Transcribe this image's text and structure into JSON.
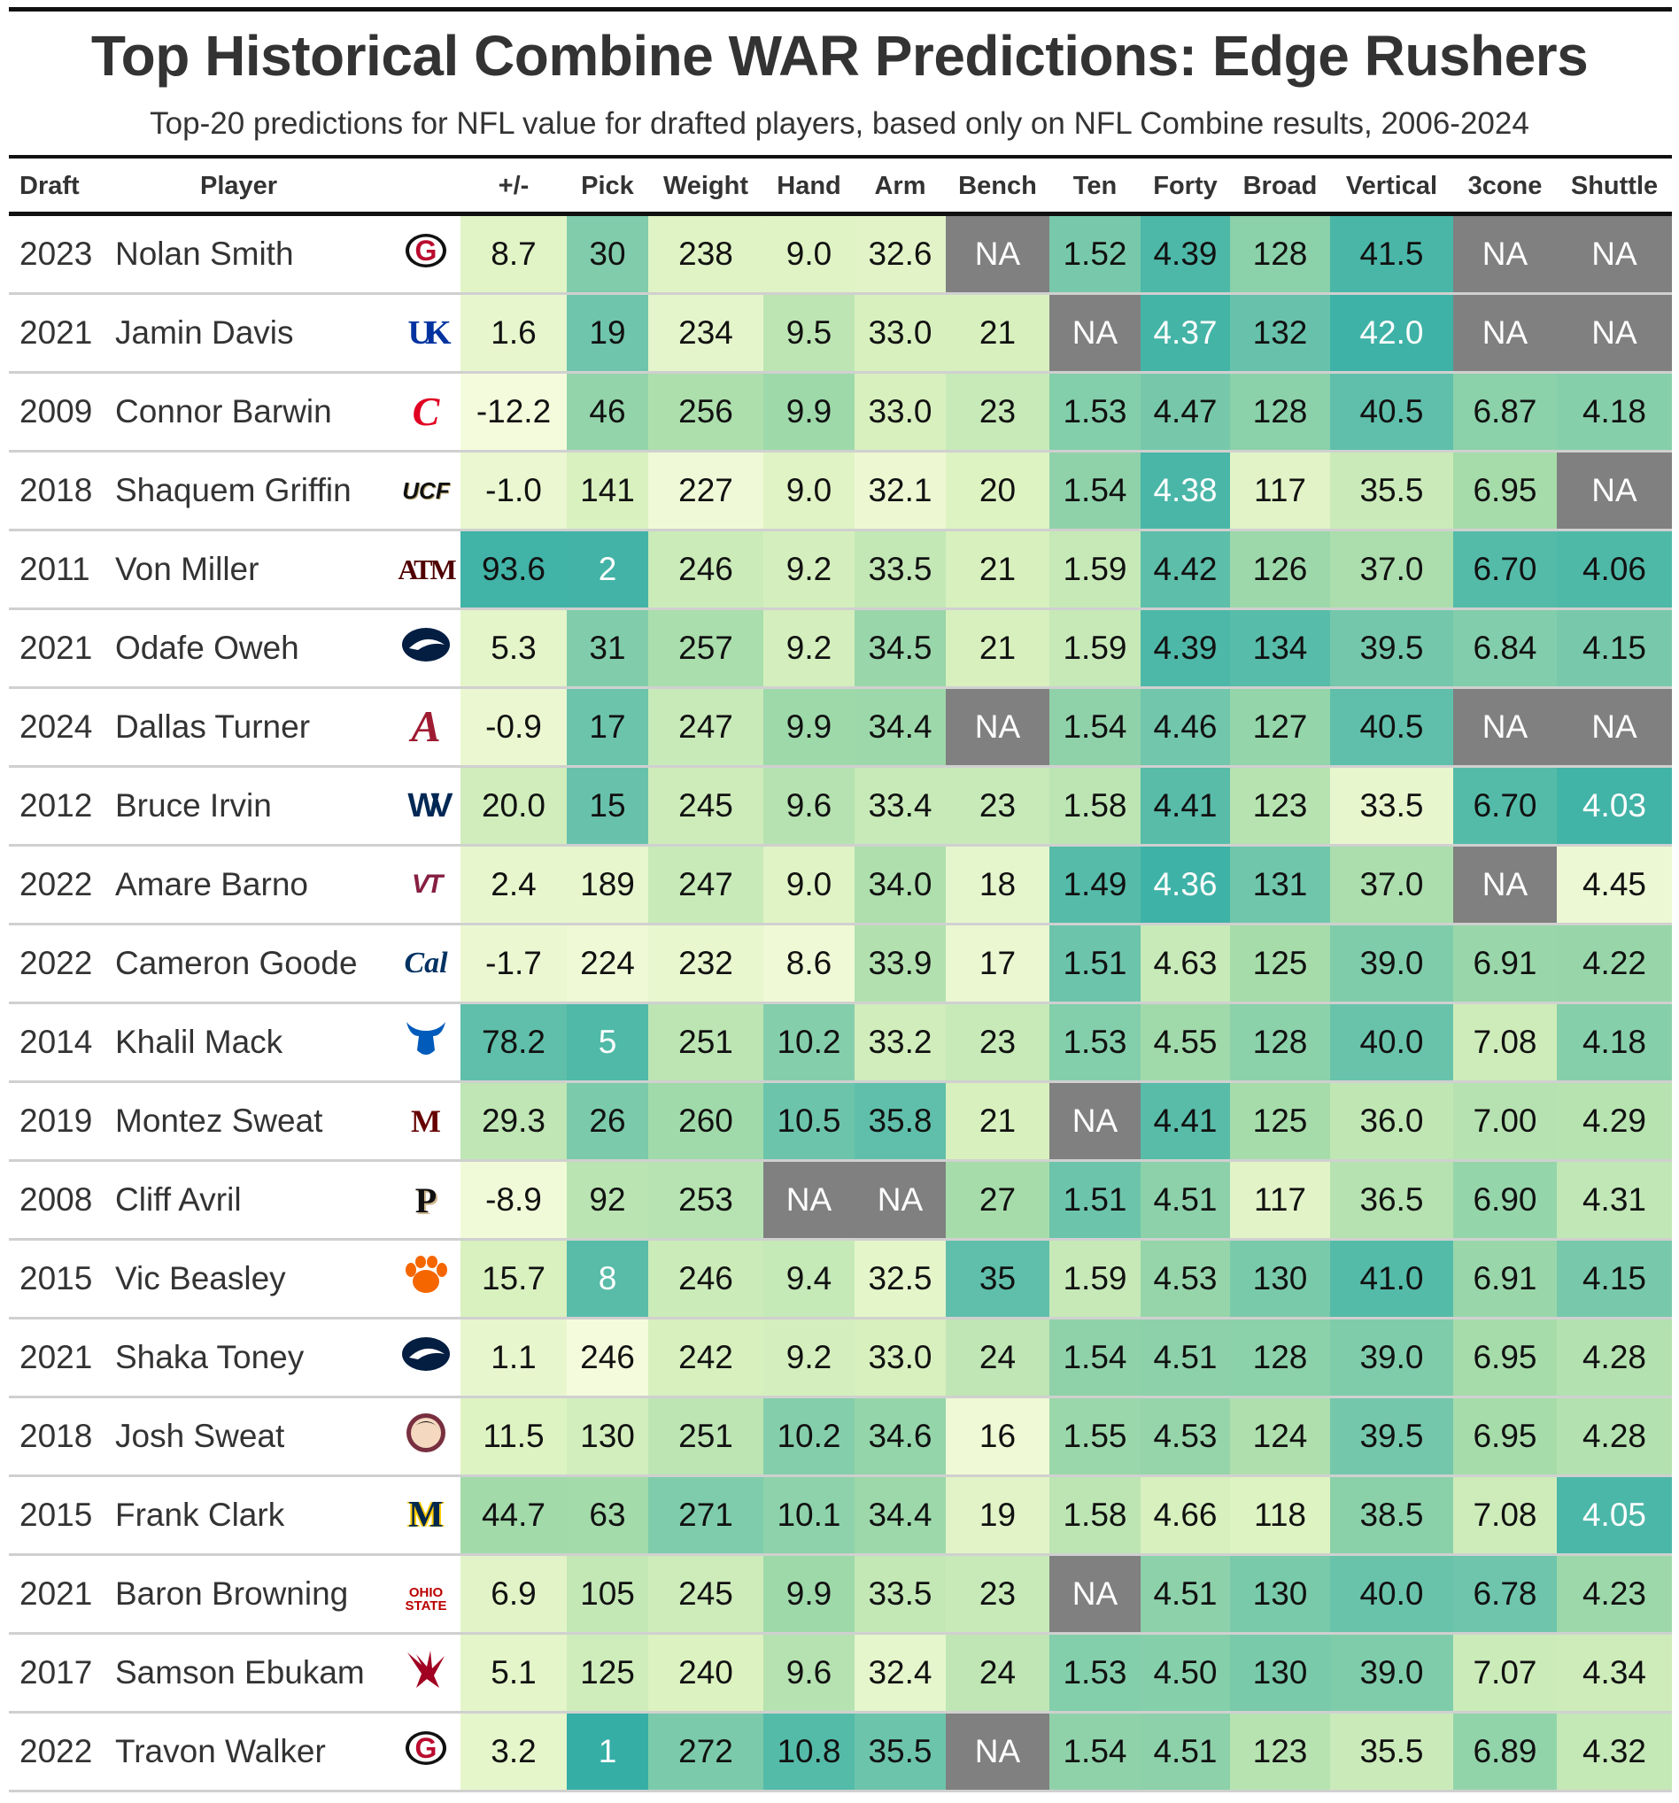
{
  "title": "Top Historical Combine WAR Predictions: Edge Rushers",
  "subtitle": "Top-20 predictions for NFL value for drafted players, based only on NFL Combine results, 2006-2024",
  "chart_data": {
    "type": "table",
    "columns": [
      "Draft",
      "Player",
      "",
      "+/-",
      "Pick",
      "Weight",
      "Hand",
      "Arm",
      "Bench",
      "Ten",
      "Forty",
      "Broad",
      "Vertical",
      "3cone",
      "Shuttle"
    ],
    "na_color": "#808080",
    "scale_colors": [
      "#f7fcdf",
      "#dcf2c0",
      "#a6dcaa",
      "#6cc4ab",
      "#35aea6"
    ],
    "stat_scales": {
      "pm": {
        "light": -15,
        "dark": 100
      },
      "pick": {
        "light": 260,
        "dark": 1,
        "power": 0.5,
        "white_at_or_better": 8
      },
      "weight": {
        "light": 222,
        "dark": 295
      },
      "hand": {
        "light": 8.4,
        "dark": 11.2
      },
      "arm": {
        "light": 31.6,
        "dark": 36.8
      },
      "bench": {
        "light": 14,
        "dark": 40
      },
      "ten": {
        "light": 1.66,
        "dark": 1.46
      },
      "forty": {
        "light": 4.78,
        "dark": 4.34,
        "white_at_or_better": 4.38
      },
      "broad": {
        "light": 112,
        "dark": 138
      },
      "vertical": {
        "light": 32,
        "dark": 42.5,
        "white_at_or_better": 42.0
      },
      "cone": {
        "light": 7.3,
        "dark": 6.6
      },
      "shuttle": {
        "light": 4.5,
        "dark": 4.0,
        "white_at_or_better": 4.05
      }
    },
    "rows": [
      {
        "draft": "2023",
        "player": "Nolan Smith",
        "school": "georgia",
        "pm": "8.7",
        "pick": "30",
        "weight": "238",
        "hand": "9.0",
        "arm": "32.6",
        "bench": "NA",
        "ten": "1.52",
        "forty": "4.39",
        "broad": "128",
        "vertical": "41.5",
        "cone": "NA",
        "shuttle": "NA"
      },
      {
        "draft": "2021",
        "player": "Jamin Davis",
        "school": "kentucky",
        "pm": "1.6",
        "pick": "19",
        "weight": "234",
        "hand": "9.5",
        "arm": "33.0",
        "bench": "21",
        "ten": "NA",
        "forty": "4.37",
        "broad": "132",
        "vertical": "42.0",
        "cone": "NA",
        "shuttle": "NA"
      },
      {
        "draft": "2009",
        "player": "Connor Barwin",
        "school": "cincinnati",
        "pm": "-12.2",
        "pick": "46",
        "weight": "256",
        "hand": "9.9",
        "arm": "33.0",
        "bench": "23",
        "ten": "1.53",
        "forty": "4.47",
        "broad": "128",
        "vertical": "40.5",
        "cone": "6.87",
        "shuttle": "4.18"
      },
      {
        "draft": "2018",
        "player": "Shaquem Griffin",
        "school": "ucf",
        "pm": "-1.0",
        "pick": "141",
        "weight": "227",
        "hand": "9.0",
        "arm": "32.1",
        "bench": "20",
        "ten": "1.54",
        "forty": "4.38",
        "broad": "117",
        "vertical": "35.5",
        "cone": "6.95",
        "shuttle": "NA"
      },
      {
        "draft": "2011",
        "player": "Von Miller",
        "school": "texas-am",
        "pm": "93.6",
        "pick": "2",
        "weight": "246",
        "hand": "9.2",
        "arm": "33.5",
        "bench": "21",
        "ten": "1.59",
        "forty": "4.42",
        "broad": "126",
        "vertical": "37.0",
        "cone": "6.70",
        "shuttle": "4.06"
      },
      {
        "draft": "2021",
        "player": "Odafe Oweh",
        "school": "penn-state",
        "pm": "5.3",
        "pick": "31",
        "weight": "257",
        "hand": "9.2",
        "arm": "34.5",
        "bench": "21",
        "ten": "1.59",
        "forty": "4.39",
        "broad": "134",
        "vertical": "39.5",
        "cone": "6.84",
        "shuttle": "4.15"
      },
      {
        "draft": "2024",
        "player": "Dallas Turner",
        "school": "alabama",
        "pm": "-0.9",
        "pick": "17",
        "weight": "247",
        "hand": "9.9",
        "arm": "34.4",
        "bench": "NA",
        "ten": "1.54",
        "forty": "4.46",
        "broad": "127",
        "vertical": "40.5",
        "cone": "NA",
        "shuttle": "NA"
      },
      {
        "draft": "2012",
        "player": "Bruce Irvin",
        "school": "west-virginia",
        "pm": "20.0",
        "pick": "15",
        "weight": "245",
        "hand": "9.6",
        "arm": "33.4",
        "bench": "23",
        "ten": "1.58",
        "forty": "4.41",
        "broad": "123",
        "vertical": "33.5",
        "cone": "6.70",
        "shuttle": "4.03"
      },
      {
        "draft": "2022",
        "player": "Amare Barno",
        "school": "virginia-tech",
        "pm": "2.4",
        "pick": "189",
        "weight": "247",
        "hand": "9.0",
        "arm": "34.0",
        "bench": "18",
        "ten": "1.49",
        "forty": "4.36",
        "broad": "131",
        "vertical": "37.0",
        "cone": "NA",
        "shuttle": "4.45"
      },
      {
        "draft": "2022",
        "player": "Cameron Goode",
        "school": "california",
        "pm": "-1.7",
        "pick": "224",
        "weight": "232",
        "hand": "8.6",
        "arm": "33.9",
        "bench": "17",
        "ten": "1.51",
        "forty": "4.63",
        "broad": "125",
        "vertical": "39.0",
        "cone": "6.91",
        "shuttle": "4.22"
      },
      {
        "draft": "2014",
        "player": "Khalil Mack",
        "school": "buffalo",
        "pm": "78.2",
        "pick": "5",
        "weight": "251",
        "hand": "10.2",
        "arm": "33.2",
        "bench": "23",
        "ten": "1.53",
        "forty": "4.55",
        "broad": "128",
        "vertical": "40.0",
        "cone": "7.08",
        "shuttle": "4.18"
      },
      {
        "draft": "2019",
        "player": "Montez Sweat",
        "school": "mississippi-state",
        "pm": "29.3",
        "pick": "26",
        "weight": "260",
        "hand": "10.5",
        "arm": "35.8",
        "bench": "21",
        "ten": "NA",
        "forty": "4.41",
        "broad": "125",
        "vertical": "36.0",
        "cone": "7.00",
        "shuttle": "4.29"
      },
      {
        "draft": "2008",
        "player": "Cliff Avril",
        "school": "purdue",
        "pm": "-8.9",
        "pick": "92",
        "weight": "253",
        "hand": "NA",
        "arm": "NA",
        "bench": "27",
        "ten": "1.51",
        "forty": "4.51",
        "broad": "117",
        "vertical": "36.5",
        "cone": "6.90",
        "shuttle": "4.31"
      },
      {
        "draft": "2015",
        "player": "Vic Beasley",
        "school": "clemson",
        "pm": "15.7",
        "pick": "8",
        "weight": "246",
        "hand": "9.4",
        "arm": "32.5",
        "bench": "35",
        "ten": "1.59",
        "forty": "4.53",
        "broad": "130",
        "vertical": "41.0",
        "cone": "6.91",
        "shuttle": "4.15"
      },
      {
        "draft": "2021",
        "player": "Shaka Toney",
        "school": "penn-state",
        "pm": "1.1",
        "pick": "246",
        "weight": "242",
        "hand": "9.2",
        "arm": "33.0",
        "bench": "24",
        "ten": "1.54",
        "forty": "4.51",
        "broad": "128",
        "vertical": "39.0",
        "cone": "6.95",
        "shuttle": "4.28"
      },
      {
        "draft": "2018",
        "player": "Josh Sweat",
        "school": "florida-state",
        "pm": "11.5",
        "pick": "130",
        "weight": "251",
        "hand": "10.2",
        "arm": "34.6",
        "bench": "16",
        "ten": "1.55",
        "forty": "4.53",
        "broad": "124",
        "vertical": "39.5",
        "cone": "6.95",
        "shuttle": "4.28"
      },
      {
        "draft": "2015",
        "player": "Frank Clark",
        "school": "michigan",
        "pm": "44.7",
        "pick": "63",
        "weight": "271",
        "hand": "10.1",
        "arm": "34.4",
        "bench": "19",
        "ten": "1.58",
        "forty": "4.66",
        "broad": "118",
        "vertical": "38.5",
        "cone": "7.08",
        "shuttle": "4.05"
      },
      {
        "draft": "2021",
        "player": "Baron Browning",
        "school": "ohio-state",
        "pm": "6.9",
        "pick": "105",
        "weight": "245",
        "hand": "9.9",
        "arm": "33.5",
        "bench": "23",
        "ten": "NA",
        "forty": "4.51",
        "broad": "130",
        "vertical": "40.0",
        "cone": "6.78",
        "shuttle": "4.23"
      },
      {
        "draft": "2017",
        "player": "Samson Ebukam",
        "school": "eastern-washington",
        "pm": "5.1",
        "pick": "125",
        "weight": "240",
        "hand": "9.6",
        "arm": "32.4",
        "bench": "24",
        "ten": "1.53",
        "forty": "4.50",
        "broad": "130",
        "vertical": "39.0",
        "cone": "7.07",
        "shuttle": "4.34"
      },
      {
        "draft": "2022",
        "player": "Travon Walker",
        "school": "georgia",
        "pm": "3.2",
        "pick": "1",
        "weight": "272",
        "hand": "10.8",
        "arm": "35.5",
        "bench": "NA",
        "ten": "1.54",
        "forty": "4.51",
        "broad": "123",
        "vertical": "35.5",
        "cone": "6.89",
        "shuttle": "4.32"
      }
    ]
  }
}
